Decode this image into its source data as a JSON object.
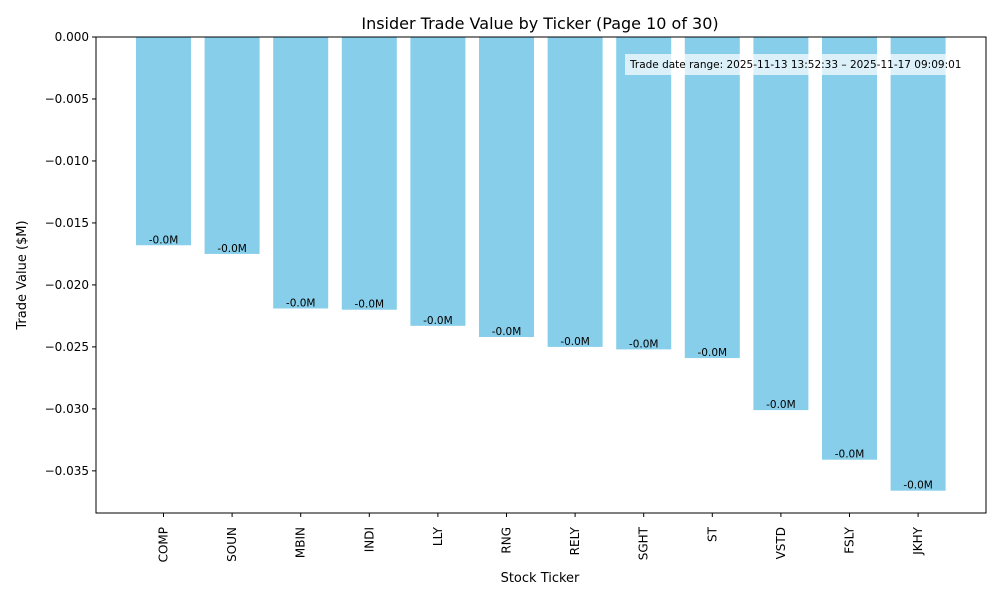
{
  "chart_data": {
    "type": "bar",
    "title": "Insider Trade Value by Ticker (Page 10 of 30)",
    "xlabel": "Stock Ticker",
    "ylabel": "Trade Value ($M)",
    "ylim": [
      -0.0384,
      0.0
    ],
    "yticks": [
      0.0,
      -0.005,
      -0.01,
      -0.015,
      -0.02,
      -0.025,
      -0.03,
      -0.035
    ],
    "ytick_labels": [
      "0.000",
      "−0.005",
      "−0.010",
      "−0.015",
      "−0.020",
      "−0.025",
      "−0.030",
      "−0.035"
    ],
    "categories": [
      "COMP",
      "SOUN",
      "MBIN",
      "INDI",
      "LLY",
      "RNG",
      "RELY",
      "SGHT",
      "ST",
      "VSTD",
      "FSLY",
      "JKHY"
    ],
    "values": [
      -0.0168,
      -0.0175,
      -0.0219,
      -0.022,
      -0.0233,
      -0.0242,
      -0.025,
      -0.0252,
      -0.0259,
      -0.0301,
      -0.0341,
      -0.0366
    ],
    "data_labels": [
      "-0.0M",
      "-0.0M",
      "-0.0M",
      "-0.0M",
      "-0.0M",
      "-0.0M",
      "-0.0M",
      "-0.0M",
      "-0.0M",
      "-0.0M",
      "-0.0M",
      "-0.0M"
    ],
    "bar_color": "#87ceeb",
    "grid": false,
    "annotation": "Trade date range: 2025-11-13 13:52:33 – 2025-11-17 09:09:01"
  }
}
